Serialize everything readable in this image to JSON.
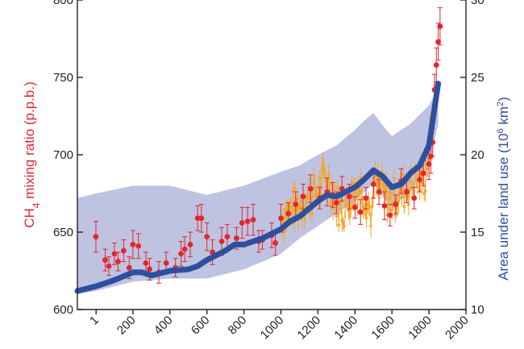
{
  "chart_data": {
    "type": "line",
    "x_ticks": [
      "1",
      "200",
      "400",
      "600",
      "800",
      "1000",
      "1200",
      "1400",
      "1600",
      "1800",
      "2000"
    ],
    "x_tick_values": [
      1,
      200,
      400,
      600,
      800,
      1000,
      1200,
      1400,
      1600,
      1800,
      2000
    ],
    "xlim": [
      -100,
      2000
    ],
    "y_left": {
      "label_main": "CH",
      "label_sub": "4",
      "label_rest": " mixing ratio (p.p.b.)",
      "ticks": [
        "600",
        "650",
        "700",
        "750",
        "800"
      ],
      "tick_values": [
        600,
        650,
        700,
        750,
        800
      ],
      "lim": [
        600,
        800
      ],
      "color": "#e3262e"
    },
    "y_right": {
      "label_main": "Area under land use (10",
      "label_sup1": "6",
      "label_mid": " km",
      "label_sup2": "2",
      "label_end": ")",
      "ticks": [
        "10",
        "15",
        "20",
        "25",
        "30"
      ],
      "tick_values": [
        10,
        15,
        20,
        25,
        30
      ],
      "lim": [
        10,
        30
      ],
      "color": "#2d4fa0"
    },
    "band_color": "#b7bcdf",
    "land_use_band": {
      "x": [
        -100,
        0,
        200,
        400,
        600,
        800,
        1000,
        1100,
        1200,
        1300,
        1400,
        1450,
        1500,
        1550,
        1600,
        1700,
        1800,
        1850
      ],
      "upper": [
        17.2,
        17.5,
        18.0,
        18.0,
        17.4,
        18.0,
        18.9,
        19.3,
        20.0,
        20.6,
        21.6,
        22.2,
        22.7,
        21.9,
        21.2,
        22.0,
        23.2,
        24.3
      ],
      "lower": [
        11.0,
        11.2,
        11.8,
        12.0,
        12.0,
        12.6,
        13.6,
        14.6,
        15.4,
        16.2,
        17.0,
        17.6,
        18.1,
        17.3,
        16.6,
        17.6,
        19.3,
        22.0
      ]
    },
    "land_use_line": {
      "color": "#2d4fa0",
      "x": [
        -100,
        0,
        100,
        200,
        250,
        300,
        400,
        500,
        550,
        600,
        700,
        750,
        800,
        900,
        1000,
        1050,
        1100,
        1200,
        1250,
        1300,
        1400,
        1450,
        1500,
        1550,
        1600,
        1650,
        1700,
        1750,
        1800,
        1850
      ],
      "y": [
        11.2,
        11.5,
        11.9,
        12.4,
        12.4,
        12.2,
        12.5,
        12.6,
        12.8,
        13.2,
        13.8,
        14.2,
        14.2,
        14.6,
        15.2,
        15.7,
        16.0,
        17.0,
        17.4,
        17.3,
        17.9,
        18.4,
        19.0,
        18.6,
        17.9,
        18.1,
        18.8,
        19.3,
        20.6,
        24.6
      ]
    },
    "ice_core_points": {
      "color": "#e3262e",
      "x": [
        0,
        50,
        70,
        100,
        120,
        150,
        180,
        200,
        230,
        270,
        290,
        340,
        380,
        430,
        460,
        480,
        510,
        550,
        570,
        600,
        630,
        680,
        710,
        760,
        790,
        820,
        850,
        880,
        900,
        950,
        970,
        1000,
        1040,
        1080,
        1120,
        1160,
        1210,
        1250,
        1280,
        1300,
        1330,
        1370,
        1400,
        1430,
        1460,
        1500,
        1530,
        1560,
        1590,
        1620,
        1650,
        1680,
        1720,
        1750,
        1770,
        1800,
        1810,
        1820,
        1830,
        1840,
        1850,
        1860
      ],
      "y": [
        647,
        632,
        628,
        636,
        631,
        638,
        627,
        642,
        641,
        630,
        626,
        624,
        630,
        627,
        636,
        639,
        642,
        659,
        659,
        647,
        637,
        644,
        647,
        646,
        656,
        657,
        658,
        644,
        645,
        648,
        643,
        659,
        662,
        668,
        673,
        678,
        672,
        676,
        674,
        669,
        678,
        673,
        666,
        663,
        672,
        681,
        676,
        667,
        661,
        668,
        683,
        676,
        672,
        684,
        688,
        694,
        699,
        708,
        742,
        758,
        773,
        783
      ],
      "err": [
        10,
        7,
        6,
        7,
        6,
        7,
        7,
        9,
        8,
        7,
        7,
        7,
        7,
        6,
        8,
        8,
        8,
        8,
        9,
        9,
        8,
        9,
        8,
        7,
        10,
        9,
        10,
        7,
        6,
        8,
        8,
        9,
        7,
        8,
        8,
        9,
        7,
        9,
        8,
        7,
        8,
        8,
        7,
        8,
        7,
        9,
        8,
        9,
        7,
        6,
        8,
        7,
        7,
        8,
        8,
        10,
        11,
        9,
        10,
        11,
        12,
        12
      ]
    },
    "firn_points": {
      "color": "#f5a623",
      "x_range": [
        1000,
        1850
      ],
      "note": "dense high-resolution series"
    }
  }
}
